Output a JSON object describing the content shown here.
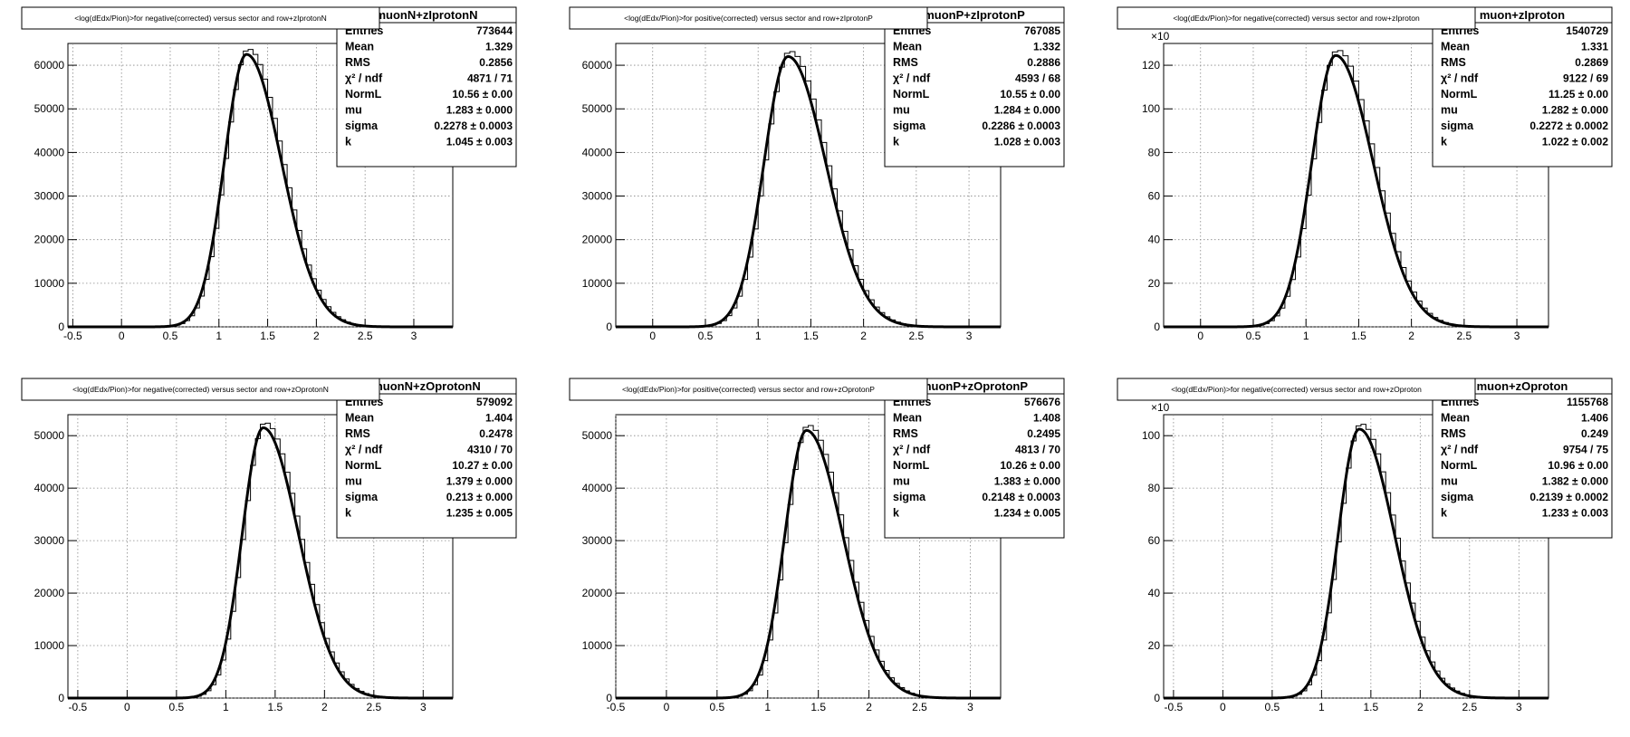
{
  "chart_data": [
    {
      "type": "histogram",
      "title": "<log(dEdx/Pion)>for negative(corrected) versus sector and row+zIprotonN",
      "stats_name": "muonN+zIprotonN",
      "xlim": [
        -0.55,
        3.4
      ],
      "ylim": [
        0,
        65000
      ],
      "x_ticks": [
        "-0.5",
        "0",
        "0.5",
        "1",
        "1.5",
        "2",
        "2.5",
        "3"
      ],
      "y_ticks": [
        "0",
        "10000",
        "20000",
        "30000",
        "40000",
        "50000",
        "60000"
      ],
      "y_exponent": "",
      "peak": 62500,
      "stats": [
        {
          "label": "Entries",
          "value": "773644"
        },
        {
          "label": "Mean",
          "value": "1.329"
        },
        {
          "label": "RMS",
          "value": "0.2856"
        },
        {
          "label": "χ² / ndf",
          "value": "4871 / 71"
        },
        {
          "label": "NormL",
          "value": "10.56 ± 0.00"
        },
        {
          "label": "mu",
          "value": "1.283 ± 0.000"
        },
        {
          "label": "sigma",
          "value": "0.2278 ± 0.0003"
        },
        {
          "label": "k",
          "value": "1.045 ± 0.003"
        }
      ]
    },
    {
      "type": "histogram",
      "title": "<log(dEdx/Pion)>for positive(corrected) versus sector and row+zIprotonP",
      "stats_name": "muonP+zIprotonP",
      "xlim": [
        -0.35,
        3.3
      ],
      "ylim": [
        0,
        65000
      ],
      "x_ticks": [
        "0",
        "0.5",
        "1",
        "1.5",
        "2",
        "2.5",
        "3"
      ],
      "y_ticks": [
        "0",
        "10000",
        "20000",
        "30000",
        "40000",
        "50000",
        "60000"
      ],
      "y_exponent": "",
      "peak": 62000,
      "stats": [
        {
          "label": "Entries",
          "value": "767085"
        },
        {
          "label": "Mean",
          "value": "1.332"
        },
        {
          "label": "RMS",
          "value": "0.2886"
        },
        {
          "label": "χ² / ndf",
          "value": "4593 / 68"
        },
        {
          "label": "NormL",
          "value": "10.55 ± 0.00"
        },
        {
          "label": "mu",
          "value": "1.284 ± 0.000"
        },
        {
          "label": "sigma",
          "value": "0.2286 ± 0.0003"
        },
        {
          "label": "k",
          "value": "1.028 ± 0.003"
        }
      ]
    },
    {
      "type": "histogram",
      "title": "<log(dEdx/Pion)>for negative(corrected) versus sector and row+zIproton",
      "stats_name": "muon+zIproton",
      "xlim": [
        -0.35,
        3.3
      ],
      "ylim": [
        0,
        130
      ],
      "x_ticks": [
        "0",
        "0.5",
        "1",
        "1.5",
        "2",
        "2.5",
        "3"
      ],
      "y_ticks": [
        "0",
        "20",
        "40",
        "60",
        "80",
        "100",
        "120"
      ],
      "y_exponent": "×10",
      "peak": 124.5,
      "stats": [
        {
          "label": "Entries",
          "value": "1540729"
        },
        {
          "label": "Mean",
          "value": "1.331"
        },
        {
          "label": "RMS",
          "value": "0.2869"
        },
        {
          "label": "χ² / ndf",
          "value": "9122 / 69"
        },
        {
          "label": "NormL",
          "value": "11.25 ± 0.00"
        },
        {
          "label": "mu",
          "value": "1.282 ± 0.000"
        },
        {
          "label": "sigma",
          "value": "0.2272 ± 0.0002"
        },
        {
          "label": "k",
          "value": "1.022 ± 0.002"
        }
      ]
    },
    {
      "type": "histogram",
      "title": "<log(dEdx/Pion)>for negative(corrected) versus sector and row+zOprotonN",
      "stats_name": "muonN+zOprotonN",
      "xlim": [
        -0.6,
        3.3
      ],
      "ylim": [
        0,
        54000
      ],
      "x_ticks": [
        "-0.5",
        "0",
        "0.5",
        "1",
        "1.5",
        "2",
        "2.5",
        "3"
      ],
      "y_ticks": [
        "0",
        "10000",
        "20000",
        "30000",
        "40000",
        "50000"
      ],
      "y_exponent": "",
      "peak": 51500,
      "stats": [
        {
          "label": "Entries",
          "value": "579092"
        },
        {
          "label": "Mean",
          "value": "1.404"
        },
        {
          "label": "RMS",
          "value": "0.2478"
        },
        {
          "label": "χ² / ndf",
          "value": "4310 / 70"
        },
        {
          "label": "NormL",
          "value": "10.27 ± 0.00"
        },
        {
          "label": "mu",
          "value": "1.379 ± 0.000"
        },
        {
          "label": "sigma",
          "value": "0.213 ± 0.000"
        },
        {
          "label": "k",
          "value": "1.235 ± 0.005"
        }
      ]
    },
    {
      "type": "histogram",
      "title": "<log(dEdx/Pion)>for positive(corrected) versus sector and row+zOprotonP",
      "stats_name": "muonP+zOprotonP",
      "xlim": [
        -0.5,
        3.3
      ],
      "ylim": [
        0,
        54000
      ],
      "x_ticks": [
        "-0.5",
        "0",
        "0.5",
        "1",
        "1.5",
        "2",
        "2.5",
        "3"
      ],
      "y_ticks": [
        "0",
        "10000",
        "20000",
        "30000",
        "40000",
        "50000"
      ],
      "y_exponent": "",
      "peak": 51000,
      "stats": [
        {
          "label": "Entries",
          "value": "576676"
        },
        {
          "label": "Mean",
          "value": "1.408"
        },
        {
          "label": "RMS",
          "value": "0.2495"
        },
        {
          "label": "χ² / ndf",
          "value": "4813 / 70"
        },
        {
          "label": "NormL",
          "value": "10.26 ± 0.00"
        },
        {
          "label": "mu",
          "value": "1.383 ± 0.000"
        },
        {
          "label": "sigma",
          "value": "0.2148 ± 0.0003"
        },
        {
          "label": "k",
          "value": "1.234 ± 0.005"
        }
      ]
    },
    {
      "type": "histogram",
      "title": "<log(dEdx/Pion)>for negative(corrected) versus sector and row+zOproton",
      "stats_name": "muon+zOproton",
      "xlim": [
        -0.6,
        3.3
      ],
      "ylim": [
        0,
        108
      ],
      "x_ticks": [
        "-0.5",
        "0",
        "0.5",
        "1",
        "1.5",
        "2",
        "2.5",
        "3"
      ],
      "y_ticks": [
        "0",
        "20",
        "40",
        "60",
        "80",
        "100"
      ],
      "y_exponent": "×10",
      "peak": 102.5,
      "stats": [
        {
          "label": "Entries",
          "value": "1155768"
        },
        {
          "label": "Mean",
          "value": "1.406"
        },
        {
          "label": "RMS",
          "value": "0.249"
        },
        {
          "label": "χ² / ndf",
          "value": "9754 / 75"
        },
        {
          "label": "NormL",
          "value": "10.96 ± 0.00"
        },
        {
          "label": "mu",
          "value": "1.382 ± 0.000"
        },
        {
          "label": "sigma",
          "value": "0.2139 ± 0.0002"
        },
        {
          "label": "k",
          "value": "1.233 ± 0.003"
        }
      ]
    }
  ]
}
